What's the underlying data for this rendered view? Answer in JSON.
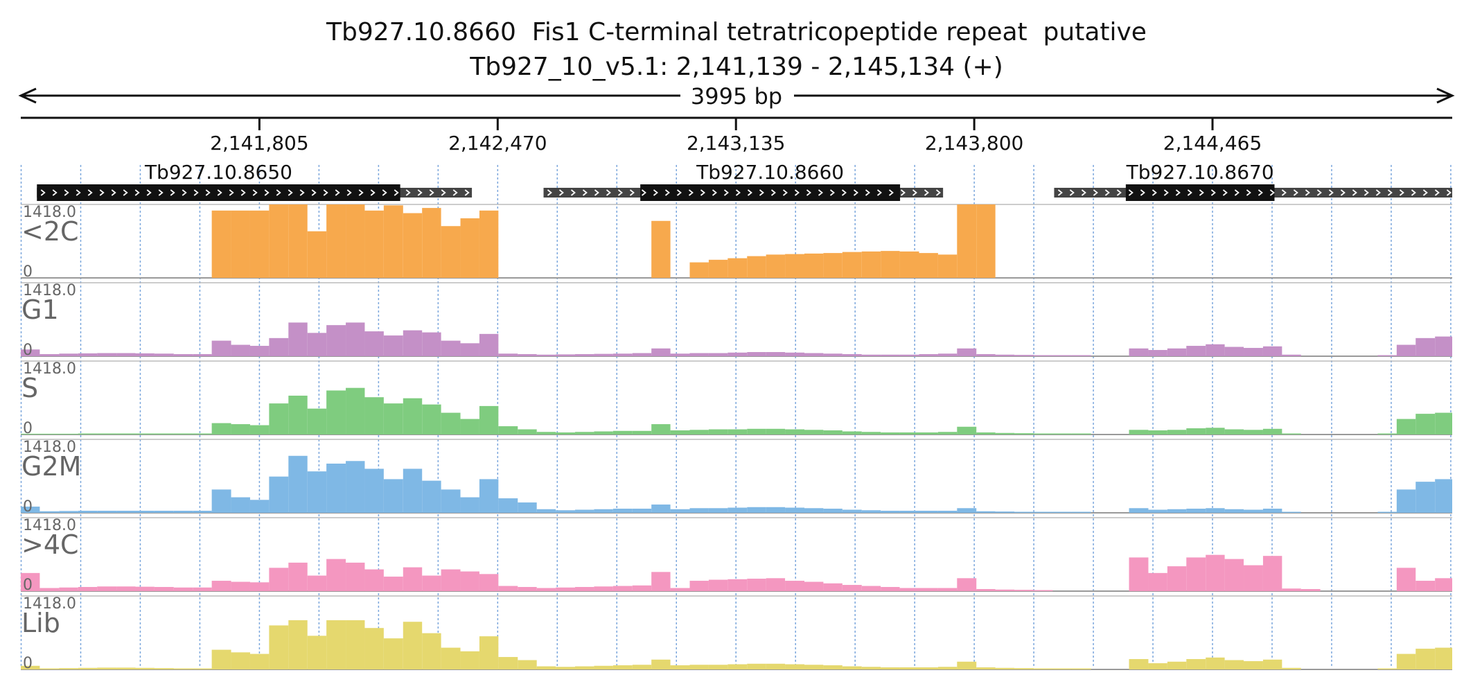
{
  "chart_data": {
    "type": "bar",
    "title": "Tb927.10.8660  Fis1 C-terminal tetratricopeptide repeat  putative",
    "subtitle": "Tb927_10_v5.1: 2,141,139 - 2,145,134 (+)",
    "span_label": "3995 bp",
    "x_range": [
      2141139,
      2145134
    ],
    "x_ticks": [
      2141805,
      2142470,
      2143135,
      2143800,
      2144465
    ],
    "x_tick_labels": [
      "2,141,805",
      "2,142,470",
      "2,143,135",
      "2,143,800",
      "2,144,465"
    ],
    "genes": [
      {
        "name": "Tb927.10.8650",
        "start": 2141184,
        "cds_start": 2141184,
        "cds_end": 2142198,
        "end": 2142398
      },
      {
        "name": "Tb927.10.8660",
        "start": 2142598,
        "cds_start": 2142868,
        "cds_end": 2143593,
        "end": 2143713
      },
      {
        "name": "Tb927.10.8670",
        "start": 2144023,
        "cds_start": 2144223,
        "cds_end": 2144638,
        "end": 2145134
      }
    ],
    "y_range": [
      0,
      1418.0
    ],
    "y_top_label": "1418.0",
    "y_bottom_label": "0",
    "x_positions": [
      2141139,
      2141192,
      2141246,
      2141299,
      2141352,
      2141406,
      2141459,
      2141512,
      2141566,
      2141619,
      2141672,
      2141726,
      2141779,
      2141832,
      2141886,
      2141939,
      2141992,
      2142046,
      2142099,
      2142152,
      2142206,
      2142259,
      2142312,
      2142366,
      2142419,
      2142472,
      2142526,
      2142579,
      2142632,
      2142686,
      2142739,
      2142792,
      2142846,
      2142899,
      2142952,
      2143006,
      2143059,
      2143112,
      2143166,
      2143219,
      2143272,
      2143326,
      2143379,
      2143432,
      2143486,
      2143539,
      2143592,
      2143646,
      2143699,
      2143752,
      2143806,
      2143859,
      2143912,
      2143966,
      2144019,
      2144072,
      2144126,
      2144179,
      2144232,
      2144286,
      2144339,
      2144392,
      2144446,
      2144499,
      2144552,
      2144606,
      2144659,
      2144712,
      2144766,
      2144819,
      2144872,
      2144926,
      2144979,
      2145032,
      2145086
    ],
    "series": [
      {
        "name": "<2C",
        "color": "#f7a94d",
        "values": [
          0,
          0,
          0,
          0,
          0,
          0,
          0,
          0,
          0,
          0,
          1300,
          1300,
          1300,
          1418,
          1418,
          900,
          1418,
          1418,
          1300,
          1400,
          1250,
          1350,
          1000,
          1150,
          1300,
          0,
          0,
          0,
          0,
          0,
          0,
          0,
          0,
          1100,
          0,
          300,
          350,
          380,
          420,
          450,
          460,
          470,
          480,
          500,
          510,
          520,
          510,
          480,
          450,
          1418,
          1418,
          0,
          0,
          0,
          0,
          0,
          0,
          0,
          0,
          0,
          0,
          0,
          0,
          0,
          0,
          0,
          0,
          0,
          0,
          0,
          0,
          0,
          0,
          0,
          0
        ]
      },
      {
        "name": "G1",
        "color": "#c490c7",
        "values": [
          130,
          40,
          50,
          55,
          60,
          60,
          55,
          50,
          40,
          40,
          300,
          220,
          200,
          350,
          650,
          450,
          600,
          650,
          480,
          400,
          500,
          460,
          300,
          250,
          430,
          50,
          40,
          30,
          35,
          40,
          45,
          50,
          60,
          150,
          50,
          60,
          60,
          70,
          80,
          80,
          70,
          60,
          50,
          40,
          30,
          30,
          30,
          40,
          50,
          150,
          40,
          30,
          25,
          20,
          20,
          20,
          0,
          0,
          150,
          120,
          150,
          200,
          230,
          180,
          160,
          190,
          30,
          0,
          0,
          0,
          0,
          20,
          220,
          350,
          380
        ]
      },
      {
        "name": "S",
        "color": "#7fcc7f",
        "values": [
          15,
          15,
          15,
          20,
          20,
          20,
          20,
          20,
          20,
          20,
          220,
          200,
          180,
          600,
          750,
          500,
          850,
          900,
          720,
          600,
          700,
          580,
          420,
          300,
          550,
          160,
          100,
          50,
          40,
          50,
          60,
          70,
          70,
          200,
          80,
          90,
          100,
          100,
          110,
          110,
          100,
          90,
          80,
          60,
          50,
          40,
          40,
          40,
          50,
          150,
          40,
          30,
          25,
          20,
          20,
          20,
          0,
          0,
          90,
          80,
          90,
          120,
          130,
          100,
          90,
          110,
          20,
          0,
          0,
          0,
          0,
          20,
          300,
          400,
          420
        ]
      },
      {
        "name": "G2M",
        "color": "#7fb8e5",
        "values": [
          120,
          30,
          35,
          40,
          40,
          40,
          40,
          40,
          40,
          40,
          450,
          300,
          250,
          700,
          1100,
          800,
          950,
          1000,
          850,
          650,
          850,
          620,
          450,
          300,
          650,
          280,
          200,
          70,
          50,
          60,
          70,
          80,
          80,
          160,
          70,
          90,
          90,
          100,
          110,
          110,
          100,
          90,
          80,
          60,
          50,
          40,
          40,
          40,
          40,
          90,
          30,
          25,
          20,
          20,
          20,
          20,
          0,
          0,
          90,
          60,
          70,
          80,
          90,
          70,
          60,
          80,
          20,
          0,
          0,
          0,
          0,
          20,
          450,
          600,
          650
        ]
      },
      {
        "name": ">4C",
        "color": "#f497c0",
        "values": [
          350,
          60,
          70,
          80,
          90,
          90,
          85,
          80,
          70,
          70,
          200,
          180,
          170,
          450,
          550,
          300,
          620,
          550,
          420,
          280,
          460,
          300,
          420,
          380,
          330,
          100,
          80,
          60,
          70,
          80,
          90,
          100,
          110,
          370,
          60,
          200,
          220,
          230,
          240,
          250,
          200,
          180,
          150,
          120,
          100,
          80,
          60,
          60,
          60,
          250,
          40,
          30,
          25,
          20,
          0,
          0,
          0,
          0,
          650,
          350,
          480,
          650,
          700,
          620,
          500,
          680,
          50,
          40,
          0,
          0,
          0,
          0,
          450,
          200,
          250
        ]
      },
      {
        "name": "Lib",
        "color": "#e5d86e",
        "values": [
          70,
          20,
          25,
          30,
          35,
          35,
          30,
          25,
          20,
          20,
          380,
          330,
          300,
          850,
          950,
          650,
          950,
          950,
          800,
          600,
          920,
          700,
          420,
          350,
          640,
          240,
          180,
          60,
          50,
          60,
          70,
          80,
          90,
          190,
          80,
          90,
          90,
          100,
          110,
          110,
          100,
          90,
          80,
          60,
          50,
          40,
          40,
          40,
          50,
          150,
          40,
          30,
          25,
          20,
          20,
          20,
          0,
          0,
          200,
          120,
          150,
          200,
          230,
          180,
          160,
          190,
          30,
          0,
          0,
          0,
          0,
          20,
          300,
          400,
          420
        ]
      }
    ]
  }
}
